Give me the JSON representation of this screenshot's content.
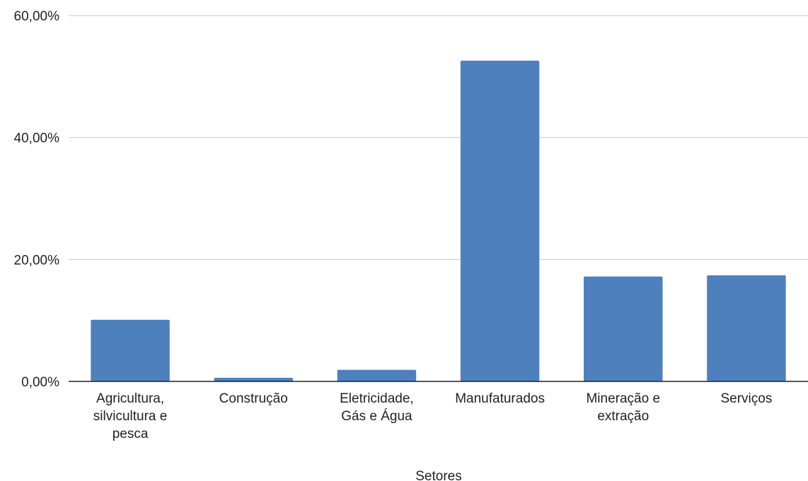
{
  "chart_data": {
    "type": "bar",
    "categories": [
      [
        "Agricultura,",
        "silvicultura e",
        "pesca"
      ],
      [
        "Construção"
      ],
      [
        "Eletricidade,",
        "Gás e Água"
      ],
      [
        "Manufaturados"
      ],
      [
        "Mineração e",
        "extração"
      ],
      [
        "Serviços"
      ]
    ],
    "values": [
      10.1,
      0.6,
      1.9,
      52.6,
      17.2,
      17.4
    ],
    "ylim": [
      0,
      60
    ],
    "yticks": [
      0,
      20,
      40,
      60
    ],
    "ytick_labels": [
      "0,00%",
      "20,00%",
      "40,00%",
      "60,00%"
    ],
    "xlabel": "Setores",
    "ylabel": "",
    "grid": true,
    "bar_color": "#4e80bd",
    "grid_color": "#c8c8c8",
    "axis_color": "#222222"
  }
}
